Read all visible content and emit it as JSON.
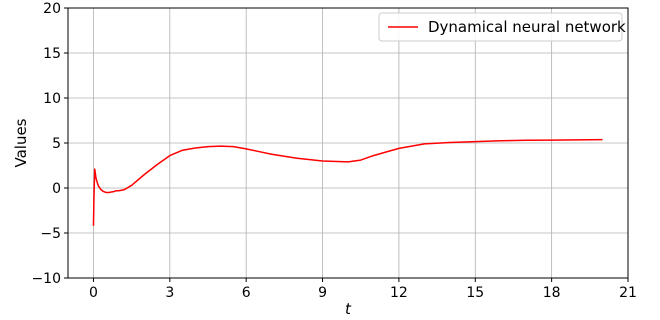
{
  "chart_data": {
    "type": "line",
    "xlabel": "t",
    "ylabel": "Values",
    "xlim": [
      -1,
      21
    ],
    "ylim": [
      -10,
      20
    ],
    "x_ticks": [
      0,
      3,
      6,
      9,
      12,
      15,
      18,
      21
    ],
    "y_ticks": [
      -10,
      -5,
      0,
      5,
      10,
      15,
      20
    ],
    "grid": true,
    "legend_position": "top-right",
    "series": [
      {
        "name": "Dynamical neural network",
        "color": "#ff0000",
        "x": [
          0.0,
          0.02,
          0.05,
          0.1,
          0.15,
          0.2,
          0.3,
          0.4,
          0.5,
          0.6,
          0.7,
          0.8,
          0.9,
          1.0,
          1.2,
          1.5,
          2.0,
          2.5,
          3.0,
          3.5,
          4.0,
          4.5,
          5.0,
          5.5,
          6.0,
          6.5,
          7.0,
          8.0,
          9.0,
          10.0,
          10.5,
          11.0,
          12.0,
          13.0,
          14.0,
          15.0,
          16.0,
          17.0,
          18.0,
          19.0,
          20.0
        ],
        "values": [
          -4.2,
          -1.0,
          2.1,
          1.1,
          0.6,
          0.2,
          -0.2,
          -0.4,
          -0.5,
          -0.5,
          -0.45,
          -0.4,
          -0.3,
          -0.3,
          -0.2,
          0.3,
          1.5,
          2.6,
          3.6,
          4.2,
          4.45,
          4.6,
          4.65,
          4.6,
          4.35,
          4.05,
          3.75,
          3.3,
          3.0,
          2.9,
          3.1,
          3.6,
          4.4,
          4.9,
          5.05,
          5.15,
          5.25,
          5.3,
          5.32,
          5.35,
          5.38
        ]
      }
    ]
  }
}
